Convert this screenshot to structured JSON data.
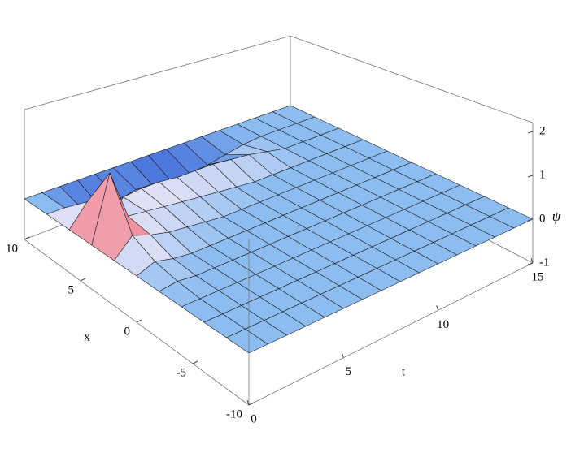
{
  "chart_data": {
    "type": "surface",
    "x_label": "x",
    "t_label": "t",
    "z_label": "ψ",
    "x": [
      -10,
      -8,
      -6,
      -4,
      -2,
      0,
      2,
      4,
      6,
      8,
      10
    ],
    "t": [
      0,
      1,
      2,
      3,
      4,
      5,
      6,
      7,
      8,
      9,
      10,
      11,
      12,
      13,
      14,
      15
    ],
    "z": [
      [
        0,
        0,
        0,
        0,
        0,
        0,
        0,
        0,
        0,
        0,
        0,
        0,
        0,
        0,
        0,
        0
      ],
      [
        0,
        0,
        0,
        0,
        0,
        0,
        0,
        0,
        0,
        0,
        0,
        0,
        0,
        0,
        0,
        0
      ],
      [
        0,
        0,
        0,
        0,
        0,
        0,
        0,
        0,
        0,
        0,
        0,
        0,
        0,
        0,
        0,
        0
      ],
      [
        0,
        0,
        0,
        0,
        0,
        0,
        0,
        0,
        0,
        0,
        0,
        0,
        0,
        0,
        0,
        0
      ],
      [
        0,
        0.05,
        0,
        0,
        0,
        0,
        0,
        0,
        0,
        0,
        0,
        0,
        0,
        0,
        0,
        0
      ],
      [
        0,
        0.15,
        0.05,
        0,
        0,
        0,
        0,
        0,
        0,
        0,
        0,
        0,
        0,
        0,
        0,
        0
      ],
      [
        0,
        0.4,
        0.25,
        0.15,
        0.1,
        0.05,
        0,
        0,
        0,
        0,
        0,
        0,
        0,
        0,
        0,
        0
      ],
      [
        0,
        1.5,
        0.35,
        0.3,
        0.25,
        0.2,
        0.15,
        0.1,
        0.05,
        0,
        0,
        0,
        0,
        0,
        0,
        0
      ],
      [
        0,
        0.5,
        -0.3,
        0.3,
        0.35,
        0.35,
        0.3,
        0.3,
        0.3,
        0.25,
        0.2,
        0.1,
        0,
        0,
        0,
        0
      ],
      [
        0,
        0,
        -0.2,
        -0.3,
        -0.3,
        -0.2,
        -0.3,
        -0.35,
        -0.3,
        -0.25,
        -0.15,
        -0.05,
        0,
        0,
        0,
        0
      ],
      [
        0,
        0,
        0,
        0,
        0,
        0,
        0,
        0,
        0,
        0,
        0,
        0,
        0,
        0,
        0,
        0
      ]
    ],
    "xlim": [
      -10,
      10
    ],
    "tlim": [
      0,
      15
    ],
    "zlim": [
      -1,
      2.2
    ],
    "xticks": [
      -10,
      -5,
      0,
      5,
      10
    ],
    "tticks": [
      0,
      5,
      10,
      15
    ],
    "zticks": [
      -1,
      0,
      1,
      2
    ],
    "color": "#8cbcf0"
  }
}
